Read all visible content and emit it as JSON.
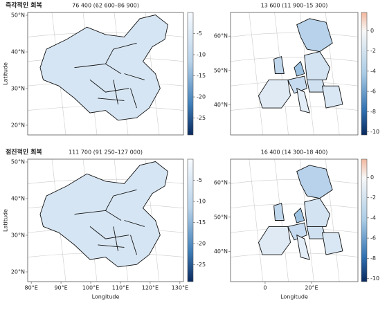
{
  "panels": [
    {
      "title": "즉각적인 회복",
      "value": "76 400 (62 600–86 900)",
      "ylabel": "Latitude",
      "ylim": [
        50.76,
        17.35
      ],
      "yticks": [
        {
          "value": 50,
          "label": "50°N"
        },
        {
          "value": 40,
          "label": "40°N"
        },
        {
          "value": 30,
          "label": "30°N"
        },
        {
          "value": 20,
          "label": "20°N"
        }
      ],
      "cbar_lim": [
        0,
        -29
      ],
      "cbar_ticks": [
        -5,
        -10,
        -15,
        -20,
        -25
      ]
    },
    {
      "value": "13 600 (11 900–15 300)",
      "ylim": [
        66.9,
        31.2
      ],
      "yticks": [
        {
          "value": 60,
          "label": "60°N"
        },
        {
          "value": 50,
          "label": "50°N"
        },
        {
          "value": 40,
          "label": "40°N"
        }
      ],
      "cbar_lim": [
        1.8,
        -10.3
      ],
      "cbar_ticks": [
        0,
        -2,
        -4,
        -6,
        -8,
        -10
      ]
    },
    {
      "title": "점진적인 회복",
      "value": "111 700 (91 250–127 000)",
      "ylabel": "Latitude",
      "xlabel": "Longitude",
      "ylim": [
        50.76,
        17.35
      ],
      "yticks": [
        {
          "value": 50,
          "label": "50°N"
        },
        {
          "value": 40,
          "label": "40°N"
        },
        {
          "value": 30,
          "label": "30°N"
        },
        {
          "value": 20,
          "label": "20°N"
        }
      ],
      "xlim": [
        78.8,
        131.2
      ],
      "xticks": [
        {
          "value": 80,
          "label": "80°E"
        },
        {
          "value": 90,
          "label": "90°E"
        },
        {
          "value": 100,
          "label": "100°E"
        },
        {
          "value": 110,
          "label": "110°E"
        },
        {
          "value": 120,
          "label": "120°E"
        },
        {
          "value": 130,
          "label": "130°E"
        }
      ],
      "cbar_lim": [
        0,
        -29
      ],
      "cbar_ticks": [
        -5,
        -10,
        -15,
        -20,
        -25
      ]
    },
    {
      "value": "16 400 (14 300–18 400)",
      "xlabel": "Longitude",
      "ylim": [
        66.9,
        31.2
      ],
      "yticks": [
        {
          "value": 60,
          "label": "60°N"
        },
        {
          "value": 50,
          "label": "50°N"
        },
        {
          "value": 40,
          "label": "40°N"
        }
      ],
      "xlim": [
        -14.9,
        40
      ],
      "xticks": [
        0,
        {
          "value": 20,
          "label": "20°E"
        }
      ],
      "cbar_lim": [
        1.8,
        -10.3
      ],
      "cbar_ticks": [
        0,
        -2,
        -4,
        -6,
        -8,
        -10
      ]
    }
  ]
}
